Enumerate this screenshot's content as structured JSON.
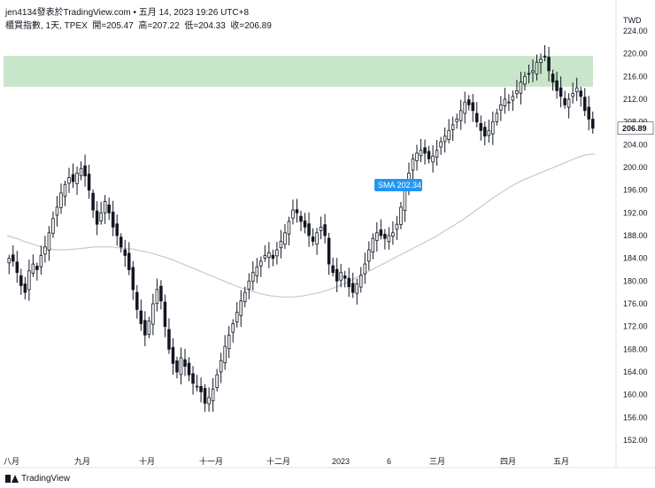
{
  "header": {
    "title": "jen4134發表於TradingView.com • 五月 14, 2023 19:26 UTC+8"
  },
  "symbol_line": {
    "name": "櫃買指數, 1天, TPEX",
    "open_label": "開=205.47",
    "high_label": "高=207.22",
    "low_label": "低=204.33",
    "close_label": "收=206.89"
  },
  "footer": {
    "brand": "TradingView"
  },
  "colors": {
    "zone_fill": "#c8e6c9",
    "bull_body": "#ffffff",
    "bear_body": "#131722",
    "sma_line": "#c9c9c9",
    "sma_label_bg": "#2196f3",
    "last_price_bg": "#ffffff"
  },
  "chart_data": {
    "type": "candlestick",
    "currency": "TWD",
    "ylim": [
      150,
      225
    ],
    "y_ticks": [
      152,
      156,
      160,
      164,
      168,
      172,
      176,
      180,
      184,
      188,
      192,
      196,
      200,
      204,
      208,
      212,
      216,
      220,
      224
    ],
    "x_tick_labels": [
      "八月",
      "九月",
      "十月",
      "十一月",
      "十二月",
      "2023",
      "6",
      "三月",
      "四月",
      "五月"
    ],
    "last_price": "206.89",
    "sma_label": "SMA 202.34",
    "zone": {
      "y_low": 214.2,
      "y_high": 219.6
    },
    "candles_close": [
      184.0,
      183.5,
      181.5,
      179.2,
      178.0,
      181.8,
      183.0,
      182.0,
      184.5,
      186.0,
      188.5,
      191.0,
      193.0,
      195.5,
      197.0,
      198.2,
      197.5,
      199.0,
      199.8,
      198.5,
      196.0,
      192.5,
      190.0,
      192.0,
      194.0,
      192.0,
      189.5,
      188.0,
      186.0,
      184.5,
      182.0,
      178.5,
      175.0,
      172.5,
      170.5,
      173.0,
      176.0,
      178.5,
      176.5,
      172.0,
      168.0,
      165.5,
      164.0,
      166.5,
      165.0,
      163.5,
      162.0,
      161.5,
      160.5,
      158.5,
      159.5,
      161.0,
      163.5,
      166.0,
      168.5,
      170.5,
      172.5,
      174.5,
      176.5,
      178.0,
      180.0,
      181.5,
      182.5,
      183.5,
      184.5,
      185.0,
      184.0,
      185.5,
      187.0,
      188.5,
      190.5,
      192.5,
      192.0,
      190.5,
      189.5,
      188.0,
      187.0,
      188.5,
      189.5,
      188.0,
      183.0,
      181.5,
      180.0,
      181.5,
      180.5,
      179.0,
      178.0,
      179.5,
      181.0,
      183.0,
      185.5,
      187.5,
      188.5,
      188.0,
      187.5,
      188.0,
      188.5,
      190.0,
      193.0,
      196.0,
      199.0,
      201.5,
      202.5,
      203.0,
      202.5,
      201.5,
      202.0,
      203.0,
      204.5,
      205.5,
      206.5,
      207.5,
      208.5,
      210.0,
      211.5,
      211.0,
      210.0,
      208.0,
      206.5,
      205.5,
      206.5,
      208.0,
      209.5,
      211.0,
      212.0,
      211.5,
      212.5,
      213.5,
      215.0,
      216.0,
      216.5,
      217.0,
      218.5,
      219.0,
      219.5,
      217.0,
      215.0,
      213.5,
      212.5,
      211.0,
      212.0,
      213.0,
      214.0,
      212.5,
      210.0,
      208.5,
      206.89
    ],
    "sma_series": [
      188.0,
      187.7,
      187.4,
      187.0,
      186.7,
      186.4,
      186.1,
      185.8,
      185.6,
      185.5,
      185.5,
      185.5,
      185.6,
      185.7,
      185.8,
      185.9,
      186.0,
      186.0,
      186.0,
      186.0,
      185.9,
      185.8,
      185.7,
      185.6,
      185.4,
      185.2,
      185.0,
      184.7,
      184.4,
      184.1,
      183.8,
      183.4,
      183.0,
      182.6,
      182.2,
      181.8,
      181.4,
      181.0,
      180.6,
      180.2,
      179.8,
      179.4,
      179.0,
      178.7,
      178.4,
      178.1,
      177.8,
      177.6,
      177.4,
      177.3,
      177.2,
      177.2,
      177.2,
      177.3,
      177.4,
      177.6,
      177.8,
      178.0,
      178.3,
      178.6,
      179.0,
      179.4,
      179.8,
      180.3,
      180.8,
      181.3,
      181.8,
      182.3,
      182.8,
      183.3,
      183.8,
      184.3,
      184.8,
      185.3,
      185.8,
      186.3,
      186.8,
      187.3,
      187.8,
      188.4,
      189.0,
      189.6,
      190.2,
      190.8,
      191.5,
      192.2,
      192.9,
      193.6,
      194.3,
      195.0,
      195.6,
      196.2,
      196.8,
      197.3,
      197.8,
      198.2,
      198.6,
      199.0,
      199.4,
      199.8,
      200.2,
      200.6,
      201.0,
      201.4,
      201.8,
      202.1,
      202.3,
      202.34
    ]
  }
}
